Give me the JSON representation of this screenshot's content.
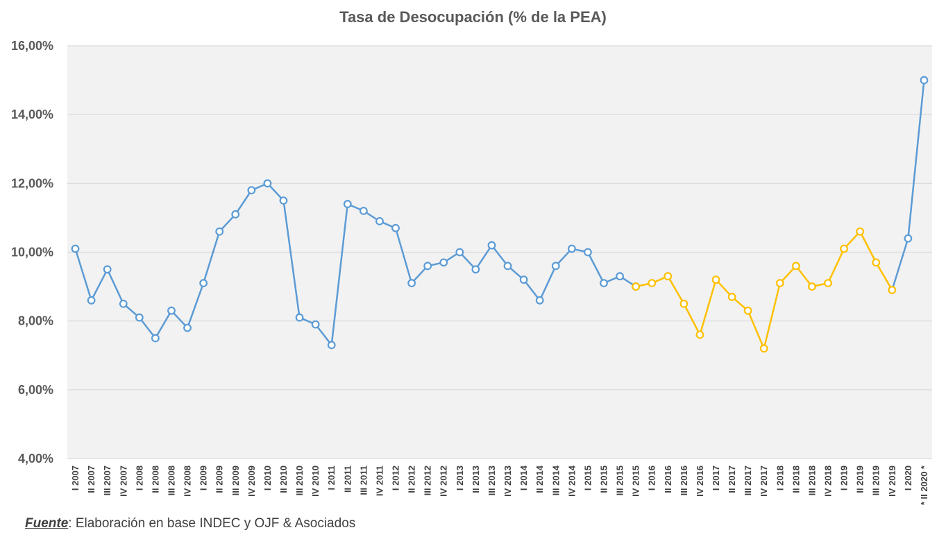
{
  "chart_data": {
    "type": "line",
    "title": "Tasa de Desocupación (% de la PEA)",
    "xlabel": "",
    "ylabel": "",
    "ylim": [
      4,
      16
    ],
    "y_ticks": [
      "4,00%",
      "6,00%",
      "8,00%",
      "10,00%",
      "12,00%",
      "14,00%",
      "16,00%"
    ],
    "y_tick_values": [
      4,
      6,
      8,
      10,
      12,
      14,
      16
    ],
    "grid": true,
    "categories": [
      "I 2007",
      "II 2007",
      "III 2007",
      "IV 2007",
      "I 2008",
      "II 2008",
      "III 2008",
      "IV 2008",
      "I 2009",
      "II 2009",
      "III 2009",
      "IV 2009",
      "I 2010",
      "II 2010",
      "III 2010",
      "IV 2010",
      "I 2011",
      "II 2011",
      "III 2011",
      "IV 2011",
      "I 2012",
      "II 2012",
      "III 2012",
      "IV 2012",
      "I 2013",
      "II 2013",
      "III 2013",
      "IV 2013",
      "I 2014",
      "II 2014",
      "III 2014",
      "IV 2014",
      "I 2015",
      "II 2015",
      "III 2015",
      "IV 2015",
      "I 2016",
      "II 2016",
      "III 2016",
      "IV 2016",
      "I 2017",
      "II 2017",
      "III 2017",
      "IV 2017",
      "I 2018",
      "II 2018",
      "III 2018",
      "IV 2018",
      "I 2019",
      "II 2019",
      "III 2019",
      "IV 2019",
      "I 2020",
      "* II 2020 *"
    ],
    "series": [
      {
        "color": "#5B9BD5",
        "values": [
          10.1,
          8.6,
          9.5,
          8.5,
          8.1,
          7.5,
          8.3,
          7.8,
          9.1,
          10.6,
          11.1,
          11.8,
          12.0,
          11.5,
          8.1,
          7.9,
          7.3,
          11.4,
          11.2,
          10.9,
          10.7,
          9.1,
          9.6,
          9.7,
          10.0,
          9.5,
          10.2,
          9.6,
          9.2,
          8.6,
          9.6,
          10.1,
          10.0,
          9.1,
          9.3,
          9.0,
          null,
          null,
          null,
          null,
          null,
          null,
          null,
          null,
          null,
          null,
          null,
          null,
          null,
          null,
          null,
          null,
          10.4,
          15.0
        ]
      },
      {
        "color": "#FFC000",
        "values": [
          null,
          null,
          null,
          null,
          null,
          null,
          null,
          null,
          null,
          null,
          null,
          null,
          null,
          null,
          null,
          null,
          null,
          null,
          null,
          null,
          null,
          null,
          null,
          null,
          null,
          null,
          null,
          null,
          null,
          null,
          null,
          null,
          null,
          null,
          null,
          9.0,
          9.1,
          9.3,
          8.5,
          7.6,
          9.2,
          8.7,
          8.3,
          7.2,
          9.1,
          9.6,
          9.0,
          9.1,
          10.1,
          10.6,
          9.7,
          8.9,
          null,
          null
        ]
      }
    ],
    "connectors": [
      {
        "color": "#5B9BD5",
        "from_index": 51,
        "to_index": 52
      }
    ]
  },
  "source": {
    "label": "Fuente",
    "text": ": Elaboración en base  INDEC y OJF & Asociados"
  },
  "colors": {
    "plot_background": "#F2F2F2",
    "gridline": "#D9D9D9",
    "text": "#595959"
  }
}
